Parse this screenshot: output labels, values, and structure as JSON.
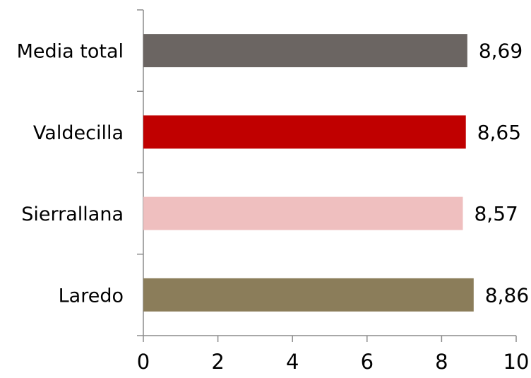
{
  "chart_data": {
    "type": "bar",
    "orientation": "horizontal",
    "categories": [
      "Media total",
      "Valdecilla",
      "Sierrallana",
      "Laredo"
    ],
    "values": [
      8.69,
      8.65,
      8.57,
      8.86
    ],
    "value_labels": [
      "8,69",
      "8,65",
      "8,57",
      "8,86"
    ],
    "colors": [
      "#6b6562",
      "#c00000",
      "#efbfbf",
      "#8b7d5a"
    ],
    "xlim": [
      0,
      10
    ],
    "x_ticks": [
      0,
      2,
      4,
      6,
      8,
      10
    ],
    "x_tick_labels": [
      "0",
      "2",
      "4",
      "6",
      "8",
      "10"
    ],
    "grid": false,
    "legend": "none"
  }
}
